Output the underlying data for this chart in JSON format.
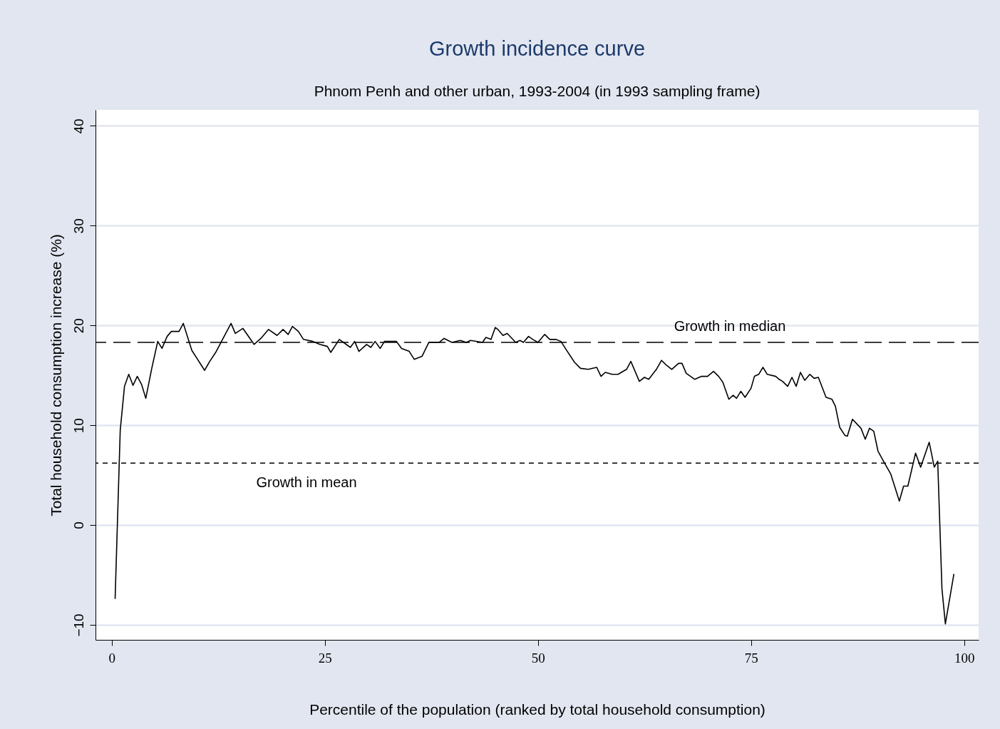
{
  "chart_data": {
    "type": "line",
    "title": "Growth incidence curve",
    "subtitle": "Phnom Penh and other urban, 1993-2004 (in 1993 sampling frame)",
    "xlabel": "Percentile of the population (ranked by total household consumption)",
    "ylabel": "Total household consumption increase (%)",
    "x": [
      0.4,
      1.0,
      1.5,
      2.0,
      2.5,
      3.0,
      3.5,
      4.0,
      4.7,
      5.4,
      5.9,
      6.5,
      7.0,
      7.9,
      8.4,
      9.4,
      10.0,
      10.9,
      11.5,
      12.2,
      13.0,
      14.0,
      14.5,
      15.4,
      16.7,
      17.5,
      18.4,
      19.4,
      20.1,
      20.7,
      21.2,
      21.9,
      22.5,
      23.6,
      24.4,
      25.3,
      25.7,
      26.7,
      28.0,
      28.5,
      29.0,
      29.9,
      30.4,
      30.9,
      31.5,
      32.0,
      33.4,
      34.0,
      34.9,
      35.5,
      36.4,
      37.2,
      38.4,
      39.0,
      39.9,
      40.9,
      41.6,
      42.1,
      43.5,
      43.9,
      44.5,
      45.0,
      45.3,
      45.9,
      46.4,
      47.4,
      47.9,
      48.3,
      48.9,
      49.4,
      50.0,
      50.8,
      51.4,
      52.1,
      52.7,
      53.3,
      54.3,
      55.0,
      55.9,
      56.9,
      57.4,
      57.9,
      58.7,
      59.4,
      60.4,
      60.9,
      61.9,
      62.5,
      63.0,
      63.9,
      64.5,
      65.1,
      65.7,
      66.5,
      66.9,
      67.4,
      68.4,
      69.2,
      69.9,
      70.6,
      71.2,
      71.7,
      72.4,
      72.9,
      73.3,
      73.8,
      74.3,
      75.0,
      75.4,
      75.9,
      76.4,
      76.9,
      77.9,
      78.3,
      78.7,
      79.3,
      79.8,
      80.3,
      80.8,
      81.3,
      81.9,
      82.4,
      82.9,
      83.8,
      84.5,
      84.9,
      85.4,
      86.0,
      86.3,
      86.9,
      87.9,
      88.4,
      88.9,
      89.4,
      89.9,
      90.6,
      91.4,
      92.4,
      92.9,
      93.4,
      94.3,
      94.9,
      95.9,
      96.5,
      96.9,
      97.4,
      97.8,
      98.8
    ],
    "series": [
      {
        "color": "#000000",
        "values": [
          -7.4,
          9.5,
          13.9,
          15.1,
          14.0,
          14.9,
          14.1,
          12.7,
          15.7,
          18.4,
          17.7,
          18.9,
          19.4,
          19.4,
          20.2,
          17.5,
          16.7,
          15.5,
          16.4,
          17.3,
          18.6,
          20.2,
          19.2,
          19.7,
          18.1,
          18.7,
          19.6,
          19.0,
          19.6,
          19.1,
          19.9,
          19.4,
          18.6,
          18.4,
          18.1,
          17.9,
          17.3,
          18.6,
          17.8,
          18.4,
          17.4,
          18.1,
          17.8,
          18.4,
          17.7,
          18.4,
          18.4,
          17.7,
          17.4,
          16.6,
          16.9,
          18.3,
          18.3,
          18.7,
          18.3,
          18.5,
          18.3,
          18.5,
          18.3,
          18.8,
          18.6,
          19.8,
          19.6,
          19.0,
          19.2,
          18.3,
          18.5,
          18.3,
          18.9,
          18.6,
          18.3,
          19.1,
          18.6,
          18.6,
          18.4,
          17.6,
          16.3,
          15.7,
          15.6,
          15.8,
          14.9,
          15.3,
          15.1,
          15.1,
          15.6,
          16.4,
          14.4,
          14.8,
          14.6,
          15.6,
          16.5,
          16.0,
          15.6,
          16.2,
          16.2,
          15.2,
          14.6,
          14.9,
          14.9,
          15.4,
          14.9,
          14.3,
          12.6,
          13.0,
          12.7,
          13.4,
          12.8,
          13.7,
          14.9,
          15.1,
          15.8,
          15.1,
          14.9,
          14.6,
          14.4,
          13.9,
          14.8,
          13.9,
          15.3,
          14.5,
          15.1,
          14.7,
          14.8,
          12.8,
          12.6,
          11.9,
          9.8,
          9.0,
          8.9,
          10.6,
          9.7,
          8.6,
          9.7,
          9.4,
          7.4,
          6.3,
          5.1,
          2.4,
          3.9,
          3.9,
          7.2,
          5.8,
          8.3,
          5.8,
          6.4,
          -6.4,
          -9.9,
          -4.9
        ]
      }
    ],
    "xlim": [
      -1.9,
      101.7
    ],
    "ylim": [
      -11.5,
      41.6
    ],
    "xticks": [
      0,
      25,
      50,
      75,
      100
    ],
    "yticks": [
      -10,
      0,
      10,
      20,
      30,
      40
    ],
    "grid": "y",
    "line_style": "solid",
    "ref_lines": [
      {
        "axis": "y",
        "value": 18.3,
        "label": "Growth in median",
        "line_style": "dashed",
        "color": "#000000"
      },
      {
        "axis": "y",
        "value": 6.2,
        "label": "Growth in mean",
        "line_style": "dotted",
        "color": "#000000"
      }
    ]
  }
}
